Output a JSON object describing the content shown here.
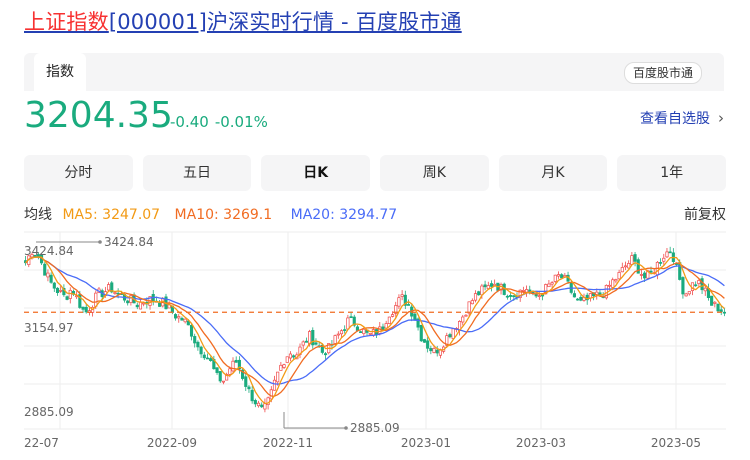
{
  "page": {
    "title_highlight": "上证指数",
    "title_rest": "[000001]沪深实时行情 - 百度股市通"
  },
  "tabs": {
    "index_tab": "指数",
    "brand": "百度股市通"
  },
  "quote": {
    "price": "3204.35",
    "change": "-0.40",
    "change_pct": "-0.01%",
    "watchlist": "查看自选股"
  },
  "periods": [
    "分时",
    "五日",
    "日K",
    "周K",
    "月K",
    "1年"
  ],
  "active_period": "日K",
  "ma_legend": {
    "label": "均线",
    "ma5": "MA5: 3247.07",
    "ma10": "MA10: 3269.1",
    "ma20": "MA20: 3294.77",
    "adjust": "前复权"
  },
  "colors": {
    "up": "#f04848",
    "down": "#1aab7e",
    "ma5": "#f29a15",
    "ma10": "#f16c22",
    "ma20": "#4a6cf7",
    "price_line": "#f16c22"
  },
  "chart_data": {
    "type": "candlestick",
    "x_ticks": [
      "22-07",
      "2022-09",
      "2022-11",
      "2023-01",
      "2023-03",
      "2023-05"
    ],
    "y_labels": [
      "3424.84",
      "3154.97",
      "2885.09"
    ],
    "max_label": "3424.84",
    "min_label": "2885.09",
    "ylim": [
      2885.09,
      3424.84
    ],
    "current_price": 3204.35,
    "close_path": [
      3360,
      3400,
      3380,
      3330,
      3290,
      3270,
      3250,
      3280,
      3240,
      3200,
      3230,
      3260,
      3270,
      3280,
      3260,
      3250,
      3240,
      3230,
      3240,
      3245,
      3240,
      3230,
      3210,
      3190,
      3180,
      3150,
      3100,
      3080,
      3050,
      3000,
      2990,
      3030,
      3050,
      3000,
      2950,
      2920,
      2890,
      2930,
      3000,
      3050,
      3080,
      3070,
      3100,
      3130,
      3110,
      3080,
      3090,
      3120,
      3150,
      3180,
      3170,
      3150,
      3130,
      3140,
      3150,
      3200,
      3220,
      3250,
      3230,
      3190,
      3130,
      3100,
      3080,
      3100,
      3130,
      3160,
      3180,
      3220,
      3250,
      3270,
      3280,
      3300,
      3280,
      3270,
      3260,
      3270,
      3280,
      3250,
      3260,
      3280,
      3300,
      3320,
      3300,
      3260,
      3230,
      3240,
      3250,
      3260,
      3270,
      3300,
      3320,
      3350,
      3370,
      3340,
      3310,
      3330,
      3360,
      3390,
      3400,
      3320,
      3260,
      3290,
      3300,
      3270,
      3230,
      3220,
      3204.35
    ],
    "ma5_last": 3247.07,
    "ma10_last": 3269.1,
    "ma20_last": 3294.77
  }
}
